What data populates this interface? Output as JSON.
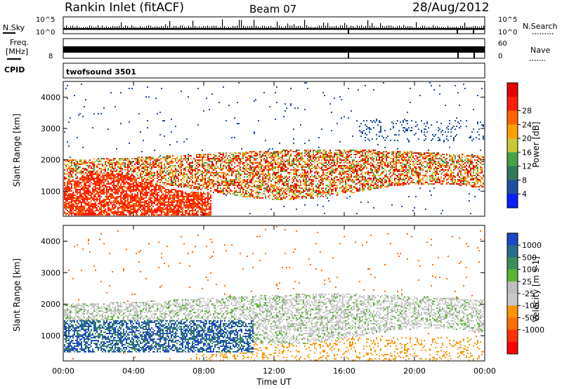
{
  "header": {
    "station": "Rankin Inlet (fitACF)",
    "beam": "Beam 07",
    "date": "28/Aug/2012"
  },
  "noise_panel": {
    "left_label": "N.Sky",
    "right_label": "N.Search",
    "ticks_left": [
      "10^5",
      "10^0"
    ],
    "ticks_right": [
      "10^5",
      "10^0"
    ]
  },
  "freq_panel": {
    "left_label_line1": "Freq.",
    "left_label_line2": "[MHz]",
    "right_label": "Nave",
    "ticks_left": [
      "8"
    ],
    "ticks_right": [
      "60",
      "0"
    ]
  },
  "cpid_panel": {
    "label": "CPID",
    "value": "twofsound 3501"
  },
  "colors": {
    "power_scale": [
      "#0a1eff",
      "#1e50a0",
      "#32785a",
      "#46a046",
      "#c8c832",
      "#ffa000",
      "#ff6400",
      "#ff1e00",
      "#e60000"
    ],
    "velocity_scale": [
      "#1e46c8",
      "#286e8c",
      "#3c8c5a",
      "#5ab432",
      "#bebebe",
      "#c8c8c8",
      "#ff9600",
      "#ff6e00",
      "#ff3200",
      "#ff0000"
    ]
  },
  "chart_data": [
    {
      "type": "heatmap",
      "name": "power",
      "ylabel": "Slant Range [km]",
      "y_ticks": [
        "1000",
        "2000",
        "3000",
        "4000"
      ],
      "ylim": [
        200,
        4500
      ],
      "colorbar_label": "Power [dB]",
      "colorbar_ticks": [
        "4",
        "8",
        "12",
        "16",
        "20",
        "24",
        "28"
      ],
      "clim": [
        0,
        32
      ]
    },
    {
      "type": "heatmap",
      "name": "velocity",
      "ylabel": "Slant Range [km]",
      "y_ticks": [
        "1000",
        "2000",
        "3000",
        "4000"
      ],
      "ylim": [
        200,
        4500
      ],
      "colorbar_label": "Velocity [m s-1]",
      "colorbar_ticks": [
        "1000",
        "500",
        "100",
        "25",
        "-25",
        "-100",
        "-500",
        "-1000"
      ]
    }
  ],
  "x_axis": {
    "label": "Time UT",
    "ticks": [
      "00:00",
      "04:00",
      "08:00",
      "12:00",
      "16:00",
      "20:00",
      "00:00"
    ]
  }
}
